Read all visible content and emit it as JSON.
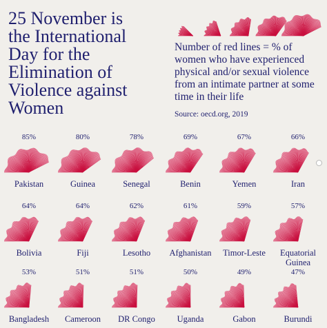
{
  "title": "25 November is\nthe International\nDay for the\nElimination of\nViolence against\nWomen",
  "legend": {
    "text": "Number of red lines = % of women who have experienced physical and/or sexual violence from an intimate partner at some time in their life",
    "source": "Source: oecd.org, 2019"
  },
  "colors": {
    "text": "#1f1f6e",
    "fan_fill": "#f2b6c6",
    "fan_line": "#c8103e",
    "background": "#f1efeb"
  },
  "chart_data": {
    "type": "fan-pictogram",
    "unit": "%",
    "items": [
      {
        "country": "Pakistan",
        "value": 85,
        "label": "85%"
      },
      {
        "country": "Guinea",
        "value": 80,
        "label": "80%"
      },
      {
        "country": "Senegal",
        "value": 78,
        "label": "78%"
      },
      {
        "country": "Benin",
        "value": 69,
        "label": "69%"
      },
      {
        "country": "Yemen",
        "value": 67,
        "label": "67%"
      },
      {
        "country": "Iran",
        "value": 66,
        "label": "66%"
      },
      {
        "country": "Bolivia",
        "value": 64,
        "label": "64%"
      },
      {
        "country": "Fiji",
        "value": 64,
        "label": "64%"
      },
      {
        "country": "Lesotho",
        "value": 62,
        "label": "62%"
      },
      {
        "country": "Afghanistan",
        "value": 61,
        "label": "61%"
      },
      {
        "country": "Timor-Leste",
        "value": 59,
        "label": "59%"
      },
      {
        "country": "Equatorial Guinea",
        "value": 57,
        "label": "57%"
      },
      {
        "country": "Bangladesh",
        "value": 53,
        "label": "53%"
      },
      {
        "country": "Cameroon",
        "value": 51,
        "label": "51%"
      },
      {
        "country": "DR Congo",
        "value": 51,
        "label": "51%"
      },
      {
        "country": "Uganda",
        "value": 50,
        "label": "50%"
      },
      {
        "country": "Gabon",
        "value": 49,
        "label": "49%"
      },
      {
        "country": "Burundi",
        "value": 47,
        "label": "47%"
      }
    ],
    "legend_values": [
      25,
      40,
      55,
      70,
      85
    ]
  }
}
